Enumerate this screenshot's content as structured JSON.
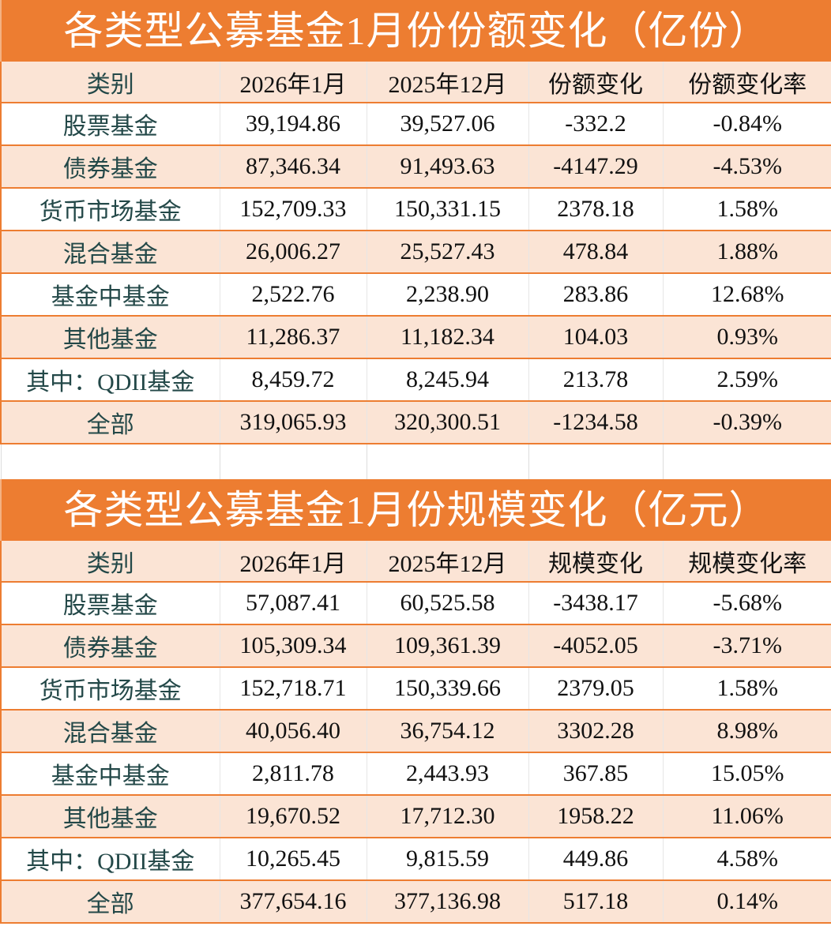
{
  "tables": [
    {
      "title": "各类型公募基金1月份份额变化（亿份）",
      "headers": [
        "类别",
        "2026年1月",
        "2025年12月",
        "份额变化",
        "份额变化率"
      ],
      "rows": [
        [
          "股票基金",
          "39,194.86",
          "39,527.06",
          "-332.2",
          "-0.84%"
        ],
        [
          "债券基金",
          "87,346.34",
          "91,493.63",
          "-4147.29",
          "-4.53%"
        ],
        [
          "货币市场基金",
          "152,709.33",
          "150,331.15",
          "2378.18",
          "1.58%"
        ],
        [
          "混合基金",
          "26,006.27",
          "25,527.43",
          "478.84",
          "1.88%"
        ],
        [
          "基金中基金",
          "2,522.76",
          "2,238.90",
          "283.86",
          "12.68%"
        ],
        [
          "其他基金",
          "11,286.37",
          "11,182.34",
          "104.03",
          "0.93%"
        ],
        [
          "其中：QDII基金",
          "8,459.72",
          "8,245.94",
          "213.78",
          "2.59%"
        ],
        [
          "全部",
          "319,065.93",
          "320,300.51",
          "-1234.58",
          "-0.39%"
        ]
      ]
    },
    {
      "title": "各类型公募基金1月份规模变化（亿元）",
      "headers": [
        "类别",
        "2026年1月",
        "2025年12月",
        "规模变化",
        "规模变化率"
      ],
      "rows": [
        [
          "股票基金",
          "57,087.41",
          "60,525.58",
          "-3438.17",
          "-5.68%"
        ],
        [
          "债券基金",
          "105,309.34",
          "109,361.39",
          "-4052.05",
          "-3.71%"
        ],
        [
          "货币市场基金",
          "152,718.71",
          "150,339.66",
          "2379.05",
          "1.58%"
        ],
        [
          "混合基金",
          "40,056.40",
          "36,754.12",
          "3302.28",
          "8.98%"
        ],
        [
          "基金中基金",
          "2,811.78",
          "2,443.93",
          "367.85",
          "15.05%"
        ],
        [
          "其他基金",
          "19,670.52",
          "17,712.30",
          "1958.22",
          "11.06%"
        ],
        [
          "其中：QDII基金",
          "10,265.45",
          "9,815.59",
          "449.86",
          "4.58%"
        ],
        [
          "全部",
          "377,654.16",
          "377,136.98",
          "517.18",
          "0.14%"
        ]
      ]
    }
  ]
}
